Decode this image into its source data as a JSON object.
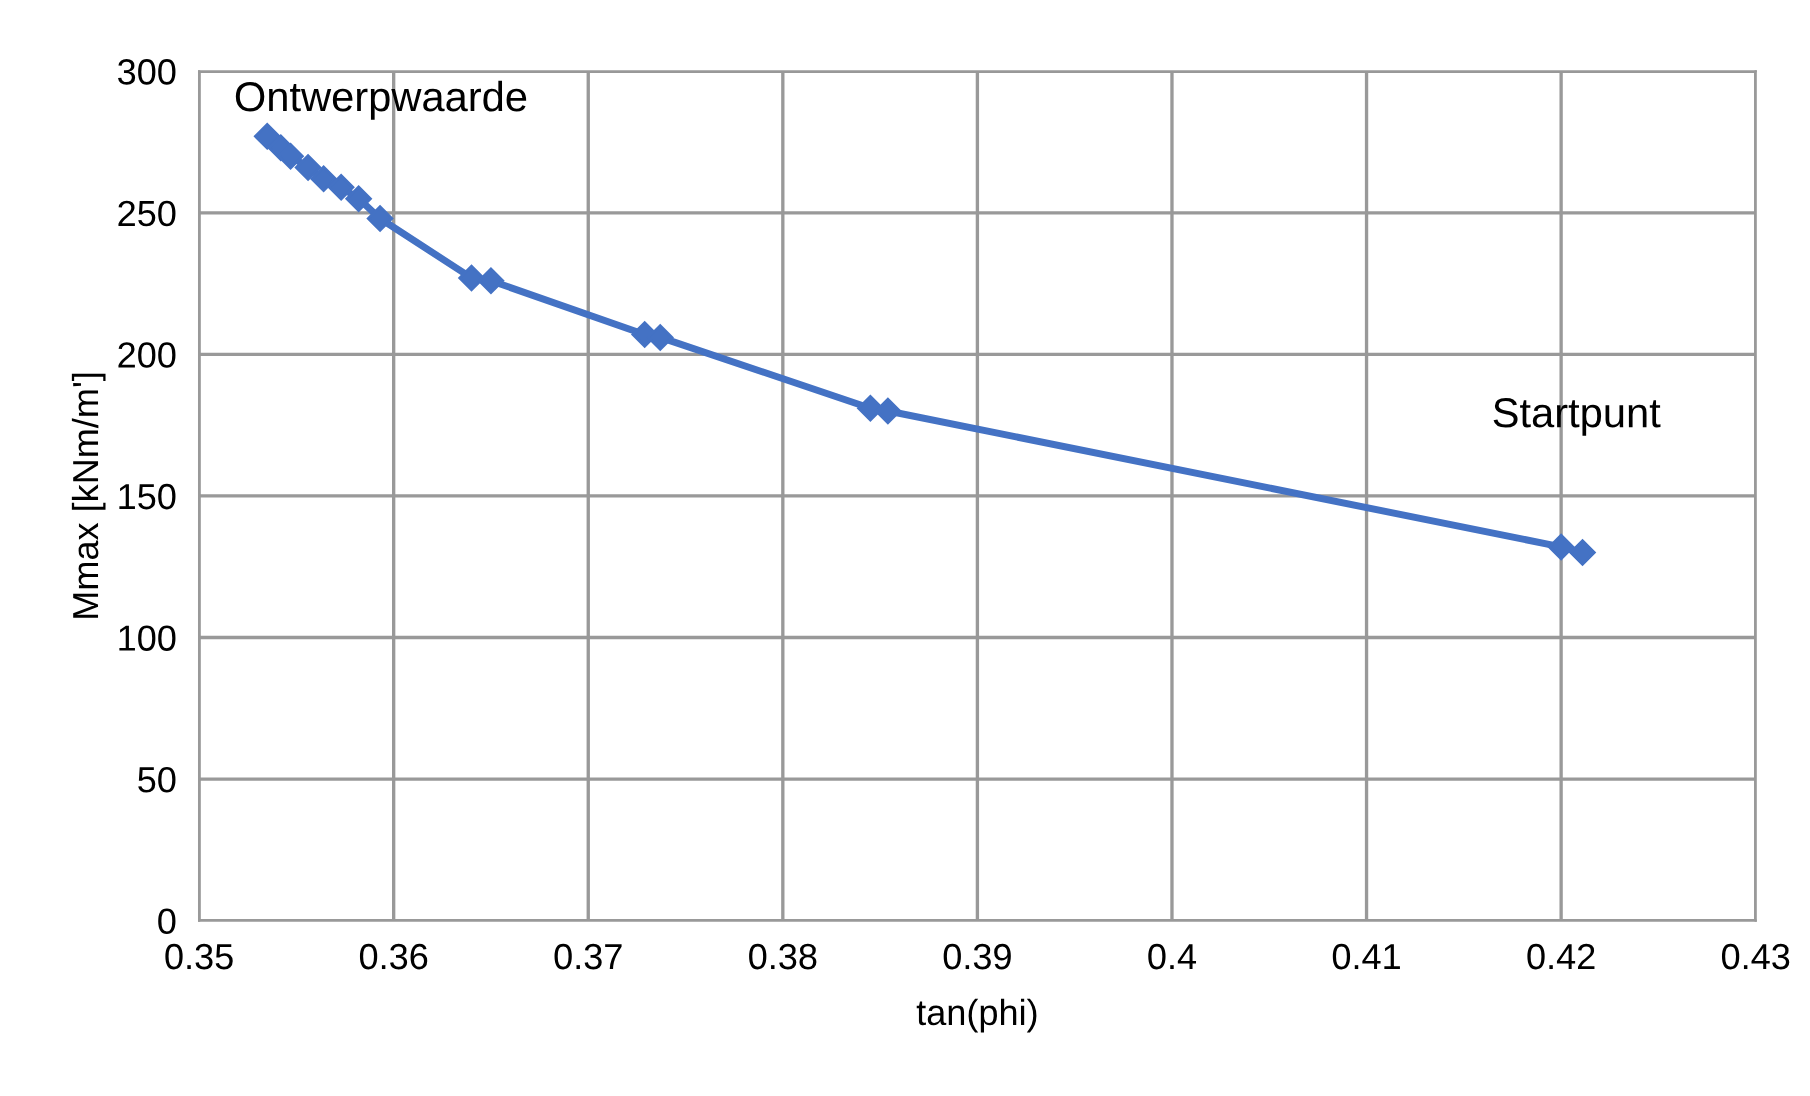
{
  "chart_data": {
    "type": "line",
    "xlabel": "tan(phi)",
    "ylabel": "Mmax [kNm/m']",
    "x": [
      0.3535,
      0.3542,
      0.3547,
      0.3556,
      0.3564,
      0.3573,
      0.3582,
      0.3593,
      0.364,
      0.365,
      0.3729,
      0.3737,
      0.3845,
      0.3854,
      0.42,
      0.4211
    ],
    "series": [
      {
        "color": "#4472c4",
        "values": [
          277,
          273,
          270,
          266,
          262,
          259,
          255,
          248,
          227,
          226,
          207,
          206,
          181,
          180,
          132,
          130
        ]
      }
    ],
    "marker": "diamond",
    "xlim": [
      0.35,
      0.43
    ],
    "xticks": [
      0.35,
      0.36,
      0.37,
      0.38,
      0.39,
      0.4,
      0.41,
      0.42,
      0.43
    ],
    "ylim": [
      0,
      300
    ],
    "yticks": [
      0,
      50,
      100,
      150,
      200,
      250,
      300
    ],
    "grid": true,
    "legend": false,
    "annotations": [
      {
        "text": "Ontwerpwaarde",
        "x": 0.3535,
        "y": 277
      },
      {
        "text": "Startpunt",
        "x": 0.42,
        "y": 132
      }
    ]
  }
}
